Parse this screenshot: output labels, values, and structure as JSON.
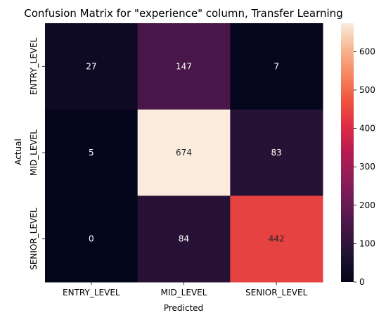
{
  "chart_data": {
    "type": "heatmap",
    "title": "Confusion Matrix for \"experience\" column, Transfer Learning",
    "xlabel": "Predicted",
    "ylabel": "Actual",
    "x_categories": [
      "ENTRY_LEVEL",
      "MID_LEVEL",
      "SENIOR_LEVEL"
    ],
    "y_categories": [
      "ENTRY_LEVEL",
      "MID_LEVEL",
      "SENIOR_LEVEL"
    ],
    "values": [
      [
        27,
        147,
        7
      ],
      [
        5,
        674,
        83
      ],
      [
        0,
        84,
        442
      ]
    ],
    "colorbar": {
      "min": 0,
      "max": 674,
      "ticks": [
        0,
        100,
        200,
        300,
        400,
        500,
        600
      ],
      "colormap": "rocket"
    },
    "annotation_colors": {
      "light": "#ffffff",
      "dark": "#262626"
    }
  }
}
